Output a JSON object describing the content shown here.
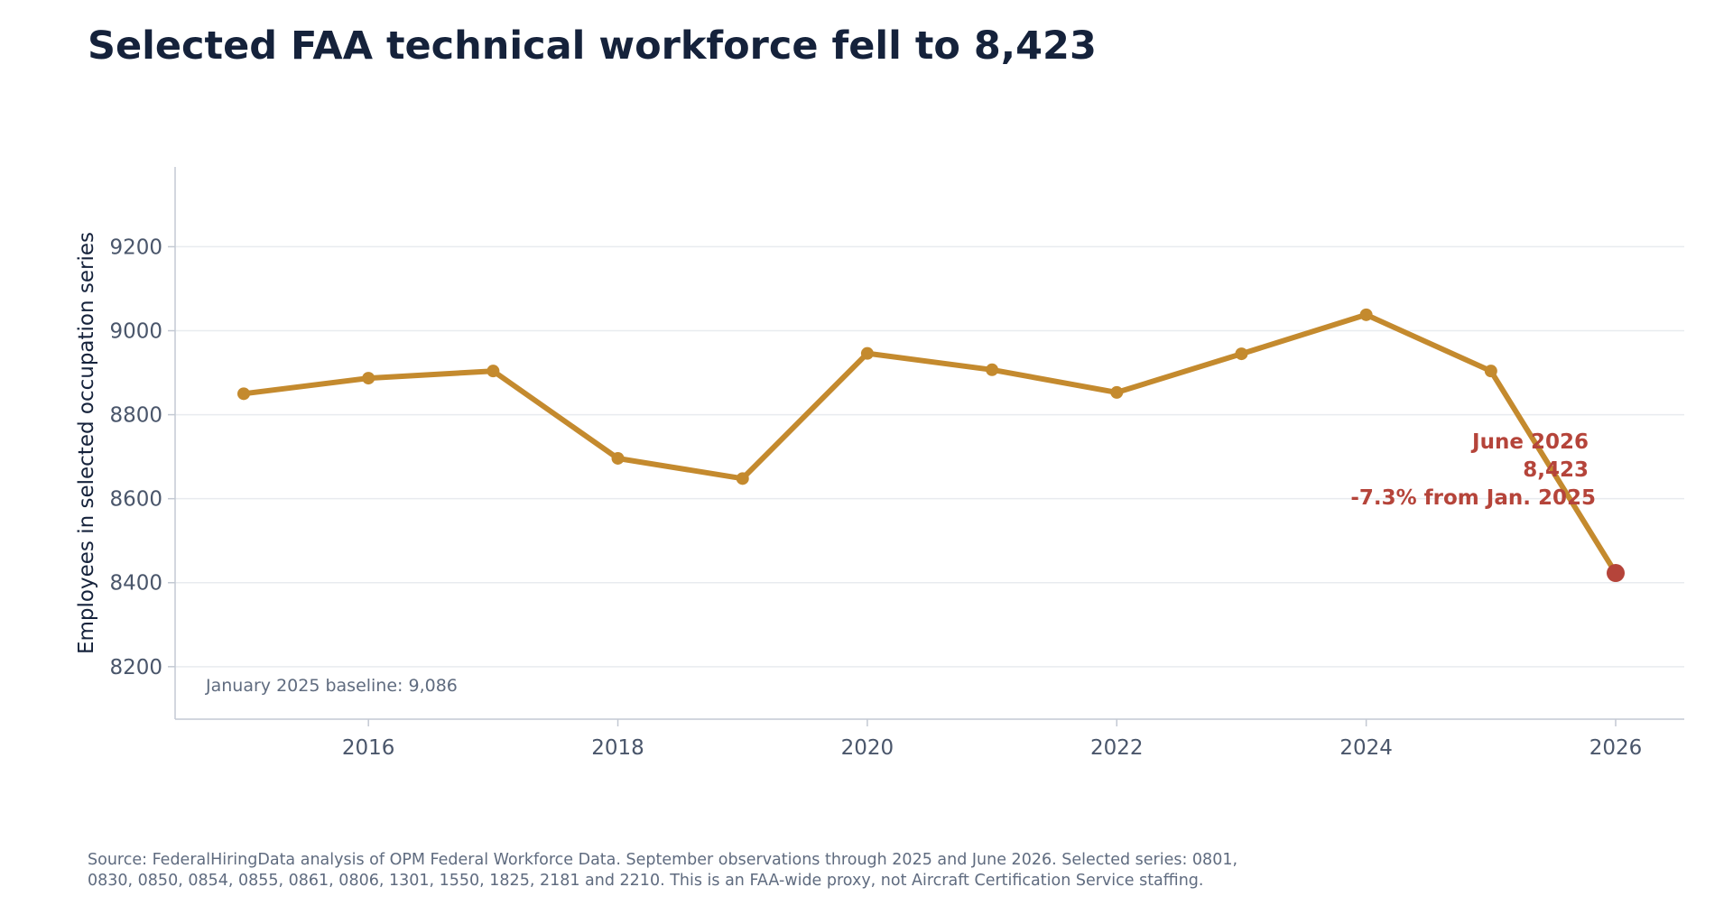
{
  "title": "Selected FAA technical workforce fell to 8,423",
  "source_note": "Source: FederalHiringData analysis of OPM Federal Workforce Data. September observations through 2025 and June 2026. Selected series: 0801, 0830, 0850, 0854, 0855, 0861, 0806, 1301, 1550, 1825, 2181 and 2210. This is an FAA-wide proxy, not Aircraft Certification Service staffing.",
  "colors": {
    "line": "#c48a2e",
    "highlight": "#b5443a",
    "grid": "#e8ebef",
    "axis": "#c3c9d3"
  },
  "chart_data": {
    "type": "line",
    "title": "Selected FAA technical workforce fell to 8,423",
    "xlabel": "",
    "ylabel": "Employees in selected occupation series",
    "xlim": [
      2014.45,
      2026.55
    ],
    "ylim": [
      8075,
      9390
    ],
    "xticks": [
      2016,
      2018,
      2020,
      2022,
      2024,
      2026
    ],
    "yticks": [
      8200,
      8400,
      8600,
      8800,
      9000,
      9200
    ],
    "grid": "horizontal",
    "series": [
      {
        "x": [
          2015,
          2016,
          2017,
          2018,
          2019,
          2020,
          2021,
          2022,
          2023,
          2024,
          2025,
          2026
        ],
        "values": [
          8850,
          8887,
          8904,
          8696,
          8648,
          8946,
          8907,
          8853,
          8945,
          9038,
          8904,
          8423
        ]
      }
    ],
    "highlight_point": {
      "x": 2026,
      "value": 8423
    },
    "annotations": {
      "callout_lines": [
        "June 2026",
        "8,423",
        "-7.3% from Jan. 2025"
      ],
      "baseline_note": "January 2025 baseline: 9,086"
    }
  }
}
